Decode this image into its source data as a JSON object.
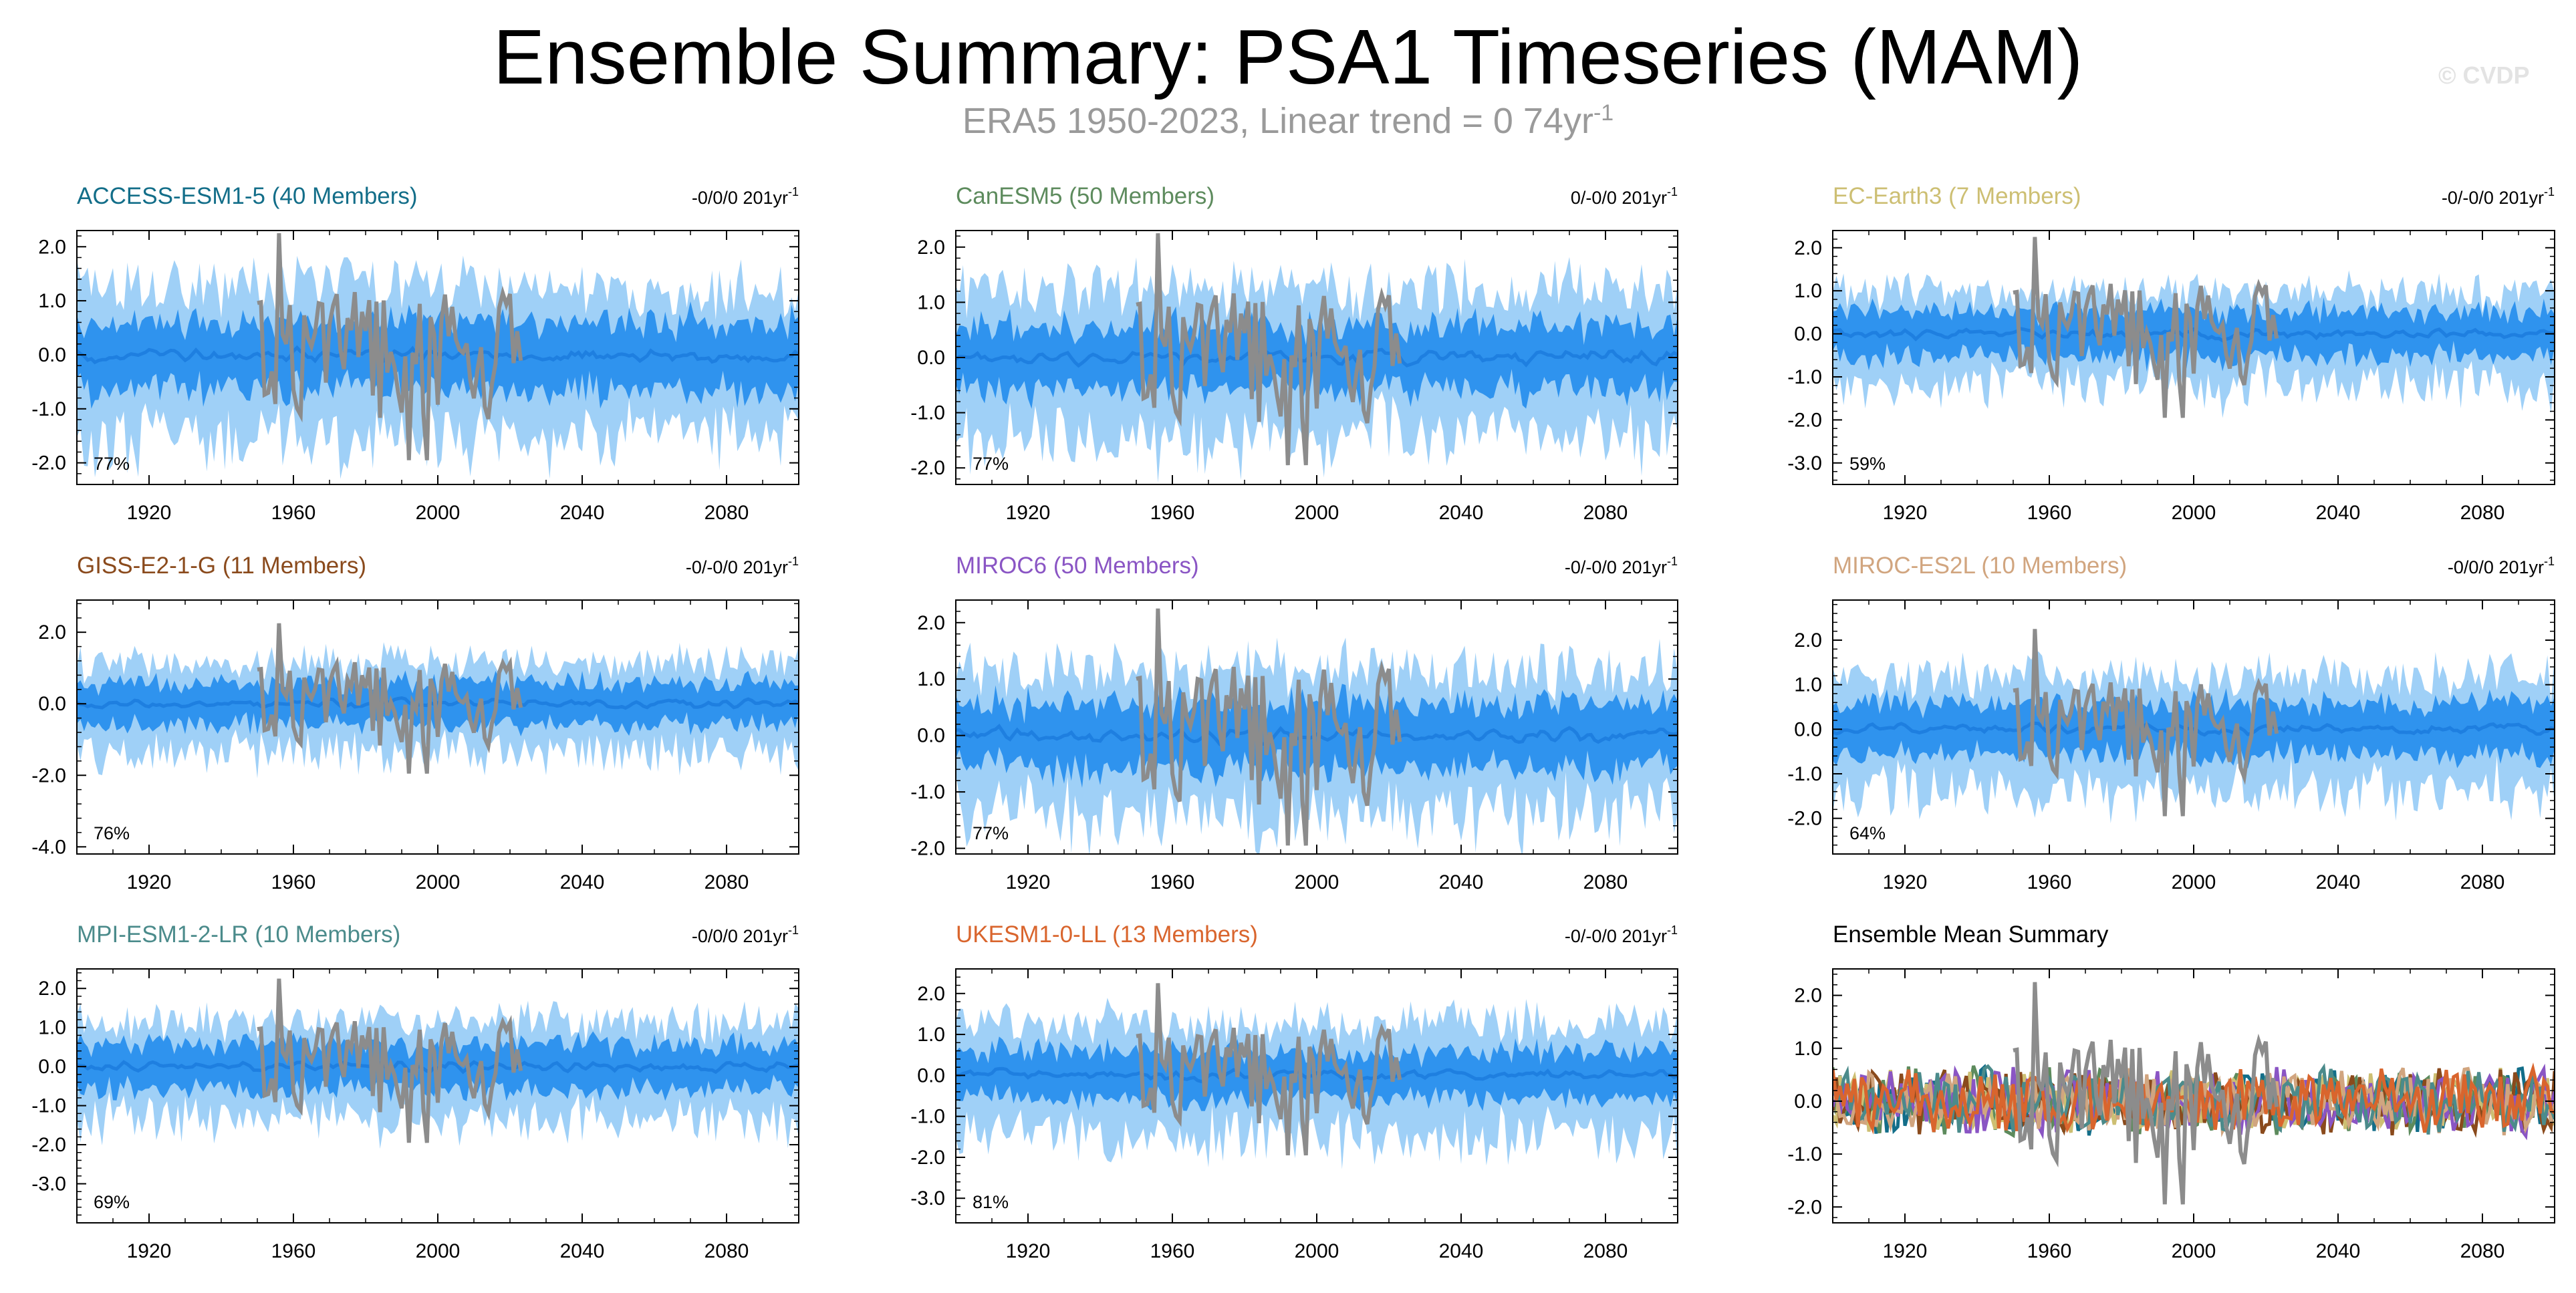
{
  "header": {
    "title": "Ensemble Summary: PSA1 Timeseries (MAM)",
    "subtitle_main": "ERA5 1950-2023, Linear trend = 0 74yr",
    "subtitle_exp": "-1",
    "watermark": "© CVDP"
  },
  "colors": {
    "outer_band": "#9fd0f7",
    "inner_band": "#2f93ee",
    "ensemble_mean": "#1e7fe0",
    "observations": "#8c8c8c",
    "axis": "#000000"
  },
  "chart_data": [
    {
      "type": "line",
      "title": "ACCESS-ESM1-5 (40 Members)",
      "title_color": "#136e89",
      "trend": "-0/0/0 201yr",
      "trend_exp": "-1",
      "percent": "77%",
      "ylim": [
        -2.4,
        2.3
      ],
      "yticks": [
        2.0,
        1.0,
        0.0,
        -1.0,
        -2.0
      ],
      "ytick_labels": [
        "2.0",
        "1.0",
        "0.0",
        "-1.0",
        "-2.0"
      ],
      "xlim": [
        1900,
        2100
      ],
      "xticks": [
        1920,
        1960,
        2000,
        2040,
        2080
      ],
      "xtick_labels": [
        "1920",
        "1960",
        "2000",
        "2040",
        "2080"
      ],
      "inner_halfwidth": 0.65,
      "outer_halfwidth": 1.3,
      "obs_years": [
        1950,
        2023
      ],
      "obs_amp": 1.05,
      "seed": 11
    },
    {
      "type": "line",
      "title": "CanESM5 (50 Members)",
      "title_color": "#5d8b5d",
      "trend": "0/-0/0 201yr",
      "trend_exp": "-1",
      "percent": "77%",
      "ylim": [
        -2.3,
        2.3
      ],
      "yticks": [
        2.0,
        1.0,
        0.0,
        -1.0,
        -2.0
      ],
      "ytick_labels": [
        "2.0",
        "1.0",
        "0.0",
        "-1.0",
        "-2.0"
      ],
      "xlim": [
        1900,
        2100
      ],
      "xticks": [
        1920,
        1960,
        2000,
        2040,
        2080
      ],
      "xtick_labels": [
        "1920",
        "1960",
        "2000",
        "2040",
        "2080"
      ],
      "inner_halfwidth": 0.6,
      "outer_halfwidth": 1.25,
      "obs_years": [
        1950,
        2023
      ],
      "obs_amp": 1.05,
      "seed": 23
    },
    {
      "type": "line",
      "title": "EC-Earth3 (7 Members)",
      "title_color": "#cdbf73",
      "trend": "-0/-0/0 201yr",
      "trend_exp": "-1",
      "percent": "59%",
      "ylim": [
        -3.5,
        2.4
      ],
      "yticks": [
        2.0,
        1.0,
        0.0,
        -1.0,
        -2.0,
        -3.0
      ],
      "ytick_labels": [
        "2.0",
        "1.0",
        "0.0",
        "-1.0",
        "-2.0",
        "-3.0"
      ],
      "xlim": [
        1900,
        2100
      ],
      "xticks": [
        1920,
        1960,
        2000,
        2040,
        2080
      ],
      "xtick_labels": [
        "1920",
        "1960",
        "2000",
        "2040",
        "2080"
      ],
      "inner_halfwidth": 0.55,
      "outer_halfwidth": 1.0,
      "obs_years": [
        1950,
        2023
      ],
      "obs_amp": 1.05,
      "seed": 37
    },
    {
      "type": "line",
      "title": "GISS-E2-1-G (11 Members)",
      "title_color": "#8a4a1c",
      "trend": "-0/-0/0 201yr",
      "trend_exp": "-1",
      "percent": "76%",
      "ylim": [
        -4.2,
        2.9
      ],
      "yticks": [
        2.0,
        0.0,
        -2.0,
        -4.0
      ],
      "ytick_labels": [
        "2.0",
        "0.0",
        "-2.0",
        "-4.0"
      ],
      "xlim": [
        1900,
        2100
      ],
      "xticks": [
        1920,
        1960,
        2000,
        2040,
        2080
      ],
      "xtick_labels": [
        "1920",
        "1960",
        "2000",
        "2040",
        "2080"
      ],
      "inner_halfwidth": 0.6,
      "outer_halfwidth": 1.2,
      "obs_years": [
        1950,
        2023
      ],
      "obs_amp": 1.05,
      "seed": 41
    },
    {
      "type": "line",
      "title": "MIROC6 (50 Members)",
      "title_color": "#8a55c4",
      "trend": "-0/-0/0 201yr",
      "trend_exp": "-1",
      "percent": "77%",
      "ylim": [
        -2.1,
        2.4
      ],
      "yticks": [
        2.0,
        1.0,
        0.0,
        -1.0,
        -2.0
      ],
      "ytick_labels": [
        "2.0",
        "1.0",
        "0.0",
        "-1.0",
        "-2.0"
      ],
      "xlim": [
        1900,
        2100
      ],
      "xticks": [
        1920,
        1960,
        2000,
        2040,
        2080
      ],
      "xtick_labels": [
        "1920",
        "1960",
        "2000",
        "2040",
        "2080"
      ],
      "inner_halfwidth": 0.6,
      "outer_halfwidth": 1.2,
      "obs_years": [
        1950,
        2023
      ],
      "obs_amp": 1.1,
      "seed": 53
    },
    {
      "type": "line",
      "title": "MIROC-ES2L (10 Members)",
      "title_color": "#d1a57f",
      "trend": "-0/0/0 201yr",
      "trend_exp": "-1",
      "percent": "64%",
      "ylim": [
        -2.8,
        2.9
      ],
      "yticks": [
        2.0,
        1.0,
        0.0,
        -1.0,
        -2.0
      ],
      "ytick_labels": [
        "2.0",
        "1.0",
        "0.0",
        "-1.0",
        "-2.0"
      ],
      "xlim": [
        1900,
        2100
      ],
      "xticks": [
        1920,
        1960,
        2000,
        2040,
        2080
      ],
      "xtick_labels": [
        "1920",
        "1960",
        "2000",
        "2040",
        "2080"
      ],
      "inner_halfwidth": 0.6,
      "outer_halfwidth": 1.2,
      "obs_years": [
        1950,
        2023
      ],
      "obs_amp": 0.95,
      "seed": 67
    },
    {
      "type": "line",
      "title": "MPI-ESM1-2-LR (10 Members)",
      "title_color": "#4b8b8b",
      "trend": "-0/0/0 201yr",
      "trend_exp": "-1",
      "percent": "69%",
      "ylim": [
        -4.0,
        2.5
      ],
      "yticks": [
        2.0,
        1.0,
        0.0,
        -1.0,
        -2.0,
        -3.0
      ],
      "ytick_labels": [
        "2.0",
        "1.0",
        "0.0",
        "-1.0",
        "-2.0",
        "-3.0"
      ],
      "xlim": [
        1900,
        2100
      ],
      "xticks": [
        1920,
        1960,
        2000,
        2040,
        2080
      ],
      "xtick_labels": [
        "1920",
        "1960",
        "2000",
        "2040",
        "2080"
      ],
      "inner_halfwidth": 0.6,
      "outer_halfwidth": 1.2,
      "obs_years": [
        1950,
        2023
      ],
      "obs_amp": 1.05,
      "seed": 79
    },
    {
      "type": "line",
      "title": "UKESM1-0-LL (13 Members)",
      "title_color": "#d9652d",
      "trend": "-0/-0/0 201yr",
      "trend_exp": "-1",
      "percent": "81%",
      "ylim": [
        -3.6,
        2.6
      ],
      "yticks": [
        2.0,
        1.0,
        0.0,
        -1.0,
        -2.0,
        -3.0
      ],
      "ytick_labels": [
        "2.0",
        "1.0",
        "0.0",
        "-1.0",
        "-2.0",
        "-3.0"
      ],
      "xlim": [
        1900,
        2100
      ],
      "xticks": [
        1920,
        1960,
        2000,
        2040,
        2080
      ],
      "xtick_labels": [
        "1920",
        "1960",
        "2000",
        "2040",
        "2080"
      ],
      "inner_halfwidth": 0.6,
      "outer_halfwidth": 1.3,
      "obs_years": [
        1950,
        2023
      ],
      "obs_amp": 1.05,
      "seed": 83
    },
    {
      "type": "line",
      "title": "Ensemble Mean Summary",
      "title_color": "#000000",
      "trend": "",
      "trend_exp": "",
      "percent": "",
      "ylim": [
        -2.3,
        2.5
      ],
      "yticks": [
        2.0,
        1.0,
        0.0,
        -1.0,
        -2.0
      ],
      "ytick_labels": [
        "2.0",
        "1.0",
        "0.0",
        "-1.0",
        "-2.0"
      ],
      "xlim": [
        1900,
        2100
      ],
      "xticks": [
        1920,
        1960,
        2000,
        2040,
        2080
      ],
      "xtick_labels": [
        "1920",
        "1960",
        "2000",
        "2040",
        "2080"
      ],
      "summary": true,
      "summary_colors": [
        "#136e89",
        "#5d8b5d",
        "#cdbf73",
        "#8a4a1c",
        "#8a55c4",
        "#d1a57f",
        "#4b8b8b",
        "#d9652d"
      ],
      "obs_years": [
        1950,
        2023
      ],
      "obs_amp": 1.05,
      "seed": 97
    }
  ]
}
